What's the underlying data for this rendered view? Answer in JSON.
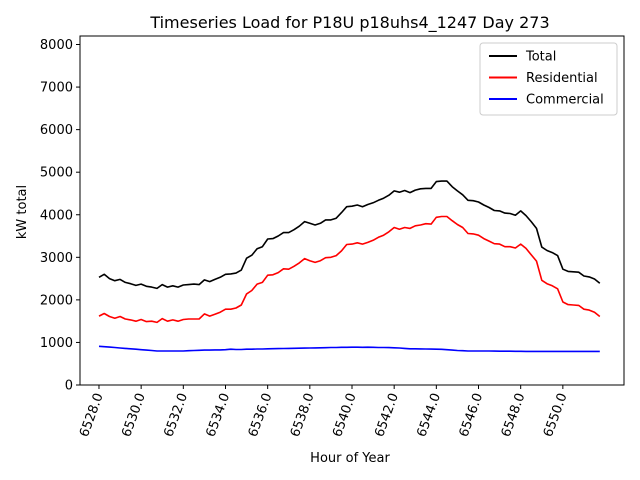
{
  "chart_data": {
    "type": "line",
    "title": "Timeseries Load for P18U p18uhs4_1247  Day 273",
    "xlabel": "Hour of Year",
    "ylabel": "kW total",
    "xlim": [
      6527.1,
      6552.9
    ],
    "ylim": [
      0,
      8200
    ],
    "x_ticks": [
      6528.0,
      6530.0,
      6532.0,
      6534.0,
      6536.0,
      6538.0,
      6540.0,
      6542.0,
      6544.0,
      6546.0,
      6548.0,
      6550.0
    ],
    "x_tick_labels": [
      "6528.0",
      "6530.0",
      "6532.0",
      "6534.0",
      "6536.0",
      "6538.0",
      "6540.0",
      "6542.0",
      "6544.0",
      "6546.0",
      "6548.0",
      "6550.0"
    ],
    "y_ticks": [
      0,
      1000,
      2000,
      3000,
      4000,
      5000,
      6000,
      7000,
      8000
    ],
    "y_tick_labels": [
      "0",
      "1000",
      "2000",
      "3000",
      "4000",
      "5000",
      "6000",
      "7000",
      "8000"
    ],
    "grid": false,
    "legend_position": "top-right",
    "x": [
      6528.0,
      6528.25,
      6528.5,
      6528.75,
      6529.0,
      6529.25,
      6529.5,
      6529.75,
      6530.0,
      6530.25,
      6530.5,
      6530.75,
      6531.0,
      6531.25,
      6531.5,
      6531.75,
      6532.0,
      6532.25,
      6532.5,
      6532.75,
      6533.0,
      6533.25,
      6533.5,
      6533.75,
      6534.0,
      6534.25,
      6534.5,
      6534.75,
      6535.0,
      6535.25,
      6535.5,
      6535.75,
      6536.0,
      6536.25,
      6536.5,
      6536.75,
      6537.0,
      6537.25,
      6537.5,
      6537.75,
      6538.0,
      6538.25,
      6538.5,
      6538.75,
      6539.0,
      6539.25,
      6539.5,
      6539.75,
      6540.0,
      6540.25,
      6540.5,
      6540.75,
      6541.0,
      6541.25,
      6541.5,
      6541.75,
      6542.0,
      6542.25,
      6542.5,
      6542.75,
      6543.0,
      6543.25,
      6543.5,
      6543.75,
      6544.0,
      6544.25,
      6544.5,
      6544.75,
      6545.0,
      6545.25,
      6545.5,
      6545.75,
      6546.0,
      6546.25,
      6546.5,
      6546.75,
      6547.0,
      6547.25,
      6547.5,
      6547.75,
      6548.0,
      6548.25,
      6548.5,
      6548.75,
      6549.0,
      6549.25,
      6549.5,
      6549.75,
      6550.0,
      6550.25,
      6550.5,
      6550.75,
      6551.0,
      6551.25,
      6551.5,
      6551.75
    ],
    "series": [
      {
        "name": "Total",
        "color": "#000000",
        "values": [
          2530,
          2600,
          2500,
          2450,
          2480,
          2410,
          2380,
          2340,
          2370,
          2320,
          2300,
          2270,
          2360,
          2300,
          2330,
          2300,
          2350,
          2360,
          2370,
          2360,
          2470,
          2430,
          2480,
          2530,
          2600,
          2610,
          2630,
          2700,
          2980,
          3050,
          3200,
          3250,
          3430,
          3440,
          3500,
          3580,
          3580,
          3650,
          3730,
          3840,
          3800,
          3760,
          3800,
          3880,
          3880,
          3920,
          4050,
          4190,
          4200,
          4230,
          4190,
          4240,
          4280,
          4340,
          4390,
          4460,
          4560,
          4530,
          4570,
          4520,
          4580,
          4610,
          4620,
          4620,
          4780,
          4790,
          4790,
          4660,
          4560,
          4470,
          4340,
          4330,
          4300,
          4230,
          4170,
          4100,
          4090,
          4040,
          4030,
          3990,
          4090,
          3980,
          3840,
          3680,
          3240,
          3160,
          3110,
          3040,
          2720,
          2670,
          2660,
          2650,
          2560,
          2540,
          2490,
          2390
        ]
      },
      {
        "name": "Residential",
        "color": "#ff0000",
        "values": [
          1620,
          1680,
          1610,
          1570,
          1610,
          1550,
          1530,
          1500,
          1540,
          1490,
          1500,
          1470,
          1560,
          1500,
          1530,
          1500,
          1540,
          1550,
          1550,
          1550,
          1670,
          1620,
          1660,
          1710,
          1780,
          1780,
          1810,
          1880,
          2140,
          2220,
          2370,
          2410,
          2580,
          2590,
          2640,
          2730,
          2720,
          2790,
          2870,
          2970,
          2920,
          2880,
          2920,
          2990,
          3000,
          3040,
          3150,
          3300,
          3310,
          3340,
          3310,
          3350,
          3400,
          3470,
          3520,
          3600,
          3700,
          3660,
          3700,
          3680,
          3740,
          3760,
          3790,
          3780,
          3940,
          3960,
          3960,
          3860,
          3770,
          3700,
          3560,
          3550,
          3520,
          3440,
          3380,
          3320,
          3310,
          3250,
          3250,
          3220,
          3310,
          3210,
          3060,
          2910,
          2460,
          2380,
          2330,
          2260,
          1950,
          1890,
          1880,
          1870,
          1780,
          1760,
          1710,
          1610
        ]
      },
      {
        "name": "Commercial",
        "color": "#0000ff",
        "values": [
          910,
          900,
          890,
          880,
          870,
          860,
          850,
          840,
          830,
          820,
          810,
          800,
          800,
          800,
          800,
          800,
          800,
          805,
          810,
          815,
          820,
          820,
          825,
          825,
          830,
          840,
          835,
          835,
          840,
          840,
          845,
          845,
          850,
          852,
          855,
          858,
          860,
          862,
          865,
          867,
          870,
          872,
          875,
          877,
          880,
          882,
          885,
          886,
          887,
          888,
          885,
          888,
          885,
          880,
          882,
          878,
          875,
          870,
          860,
          850,
          850,
          848,
          846,
          844,
          842,
          838,
          830,
          820,
          810,
          805,
          800,
          800,
          800,
          800,
          798,
          796,
          795,
          794,
          793,
          792,
          791,
          790,
          790,
          790,
          790,
          789,
          789,
          789,
          789,
          789,
          789,
          789,
          790,
          790,
          790,
          790
        ]
      }
    ]
  }
}
